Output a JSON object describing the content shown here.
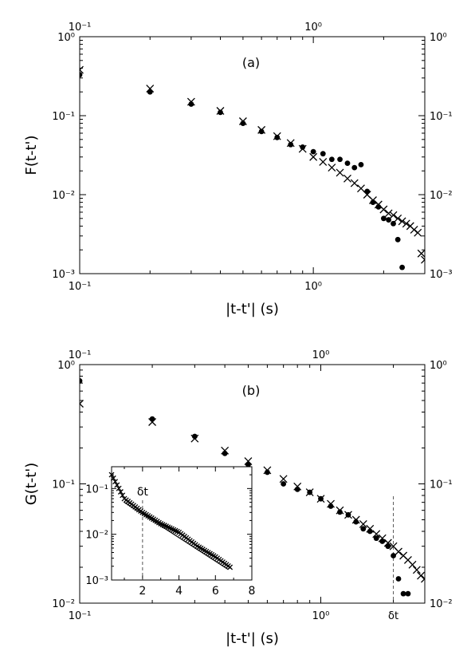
{
  "chart_data": [
    {
      "type": "scatter",
      "panel_label": "(a)",
      "xlabel": "|t-t'| (s)",
      "ylabel": "F(t-t')",
      "xscale": "log",
      "yscale": "log",
      "xlim": [
        0.1,
        3.0
      ],
      "ylim": [
        0.001,
        1.0
      ],
      "x_ticklabels": [
        "10⁻¹",
        "10⁰"
      ],
      "y_ticklabels": [
        "10⁻³",
        "10⁻²",
        "10⁻¹",
        "10⁰"
      ],
      "series": [
        {
          "marker": "dot",
          "x": [
            0.1,
            0.2,
            0.3,
            0.4,
            0.5,
            0.6,
            0.7,
            0.8,
            0.9,
            1.0,
            1.1,
            1.2,
            1.3,
            1.4,
            1.5,
            1.6,
            1.7,
            1.8,
            1.9,
            2.0,
            2.1,
            2.2,
            2.3,
            2.4
          ],
          "y": [
            0.33,
            0.2,
            0.14,
            0.11,
            0.08,
            0.063,
            0.053,
            0.043,
            0.04,
            0.035,
            0.033,
            0.028,
            0.028,
            0.025,
            0.022,
            0.024,
            0.011,
            0.008,
            0.007,
            0.005,
            0.0048,
            0.0043,
            0.0027,
            0.0012
          ]
        },
        {
          "marker": "cross",
          "x": [
            0.1,
            0.2,
            0.3,
            0.4,
            0.5,
            0.6,
            0.7,
            0.8,
            0.9,
            1.0,
            1.1,
            1.2,
            1.3,
            1.4,
            1.5,
            1.6,
            1.7,
            1.8,
            1.9,
            2.0,
            2.1,
            2.2,
            2.3,
            2.4,
            2.5,
            2.6,
            2.7,
            2.8,
            2.9,
            3.0
          ],
          "y": [
            0.38,
            0.22,
            0.15,
            0.115,
            0.085,
            0.066,
            0.055,
            0.045,
            0.038,
            0.03,
            0.026,
            0.022,
            0.019,
            0.016,
            0.014,
            0.012,
            0.01,
            0.0085,
            0.0075,
            0.0065,
            0.0058,
            0.0055,
            0.005,
            0.0046,
            0.0043,
            0.004,
            0.0036,
            0.0033,
            0.0018,
            0.0015
          ]
        }
      ]
    },
    {
      "type": "scatter",
      "panel_label": "(b)",
      "xlabel": "|t-t'| (s)",
      "ylabel": "G(t-t')",
      "xscale": "log",
      "yscale": "log",
      "xlim": [
        0.1,
        2.7
      ],
      "ylim": [
        0.01,
        1.0
      ],
      "x_ticklabels": [
        "10⁻¹",
        "10⁰"
      ],
      "y_ticklabels": [
        "10⁻²",
        "10⁻¹",
        "10⁰"
      ],
      "annotation": "δt",
      "vline_x": 2.0,
      "series": [
        {
          "marker": "dot",
          "x": [
            0.1,
            0.2,
            0.3,
            0.4,
            0.5,
            0.6,
            0.7,
            0.8,
            0.9,
            1.0,
            1.1,
            1.2,
            1.3,
            1.4,
            1.5,
            1.6,
            1.7,
            1.8,
            1.9,
            2.0,
            2.1,
            2.2,
            2.3
          ],
          "y": [
            0.73,
            0.35,
            0.25,
            0.18,
            0.145,
            0.125,
            0.1,
            0.09,
            0.085,
            0.075,
            0.065,
            0.058,
            0.055,
            0.048,
            0.042,
            0.04,
            0.035,
            0.033,
            0.03,
            0.025,
            0.016,
            0.012,
            0.012
          ]
        },
        {
          "marker": "cross",
          "x": [
            0.1,
            0.2,
            0.3,
            0.4,
            0.5,
            0.6,
            0.7,
            0.8,
            0.9,
            1.0,
            1.1,
            1.2,
            1.3,
            1.4,
            1.5,
            1.6,
            1.7,
            1.8,
            1.9,
            2.0,
            2.1,
            2.2,
            2.3,
            2.4,
            2.5,
            2.6,
            2.7
          ],
          "y": [
            0.47,
            0.33,
            0.24,
            0.19,
            0.155,
            0.13,
            0.11,
            0.095,
            0.085,
            0.075,
            0.068,
            0.06,
            0.055,
            0.05,
            0.046,
            0.042,
            0.038,
            0.035,
            0.032,
            0.03,
            0.027,
            0.025,
            0.023,
            0.021,
            0.019,
            0.017,
            0.016
          ]
        }
      ],
      "inset": {
        "type": "scatter",
        "xscale": "linear",
        "yscale": "log",
        "xlim": [
          0.3,
          8
        ],
        "ylim": [
          0.001,
          0.3
        ],
        "x_ticklabels": [
          "2",
          "4",
          "6",
          "8"
        ],
        "y_ticklabels": [
          "10⁻³",
          "10⁻²",
          "10⁻¹"
        ],
        "annotation": "δt",
        "vline_x": 2.0,
        "cross_series": {
          "x_start": 0.3,
          "x_end": 6.8,
          "x_step": 0.1,
          "anchors_x": [
            0.3,
            1.0,
            2.0,
            3.0,
            4.0,
            5.0,
            6.0,
            6.8
          ],
          "anchors_y": [
            0.2,
            0.06,
            0.03,
            0.017,
            0.011,
            0.0055,
            0.0032,
            0.0019
          ]
        },
        "reference_line": {
          "x": [
            1.0,
            6.7
          ],
          "y": [
            0.05,
            0.0017
          ]
        }
      }
    }
  ]
}
